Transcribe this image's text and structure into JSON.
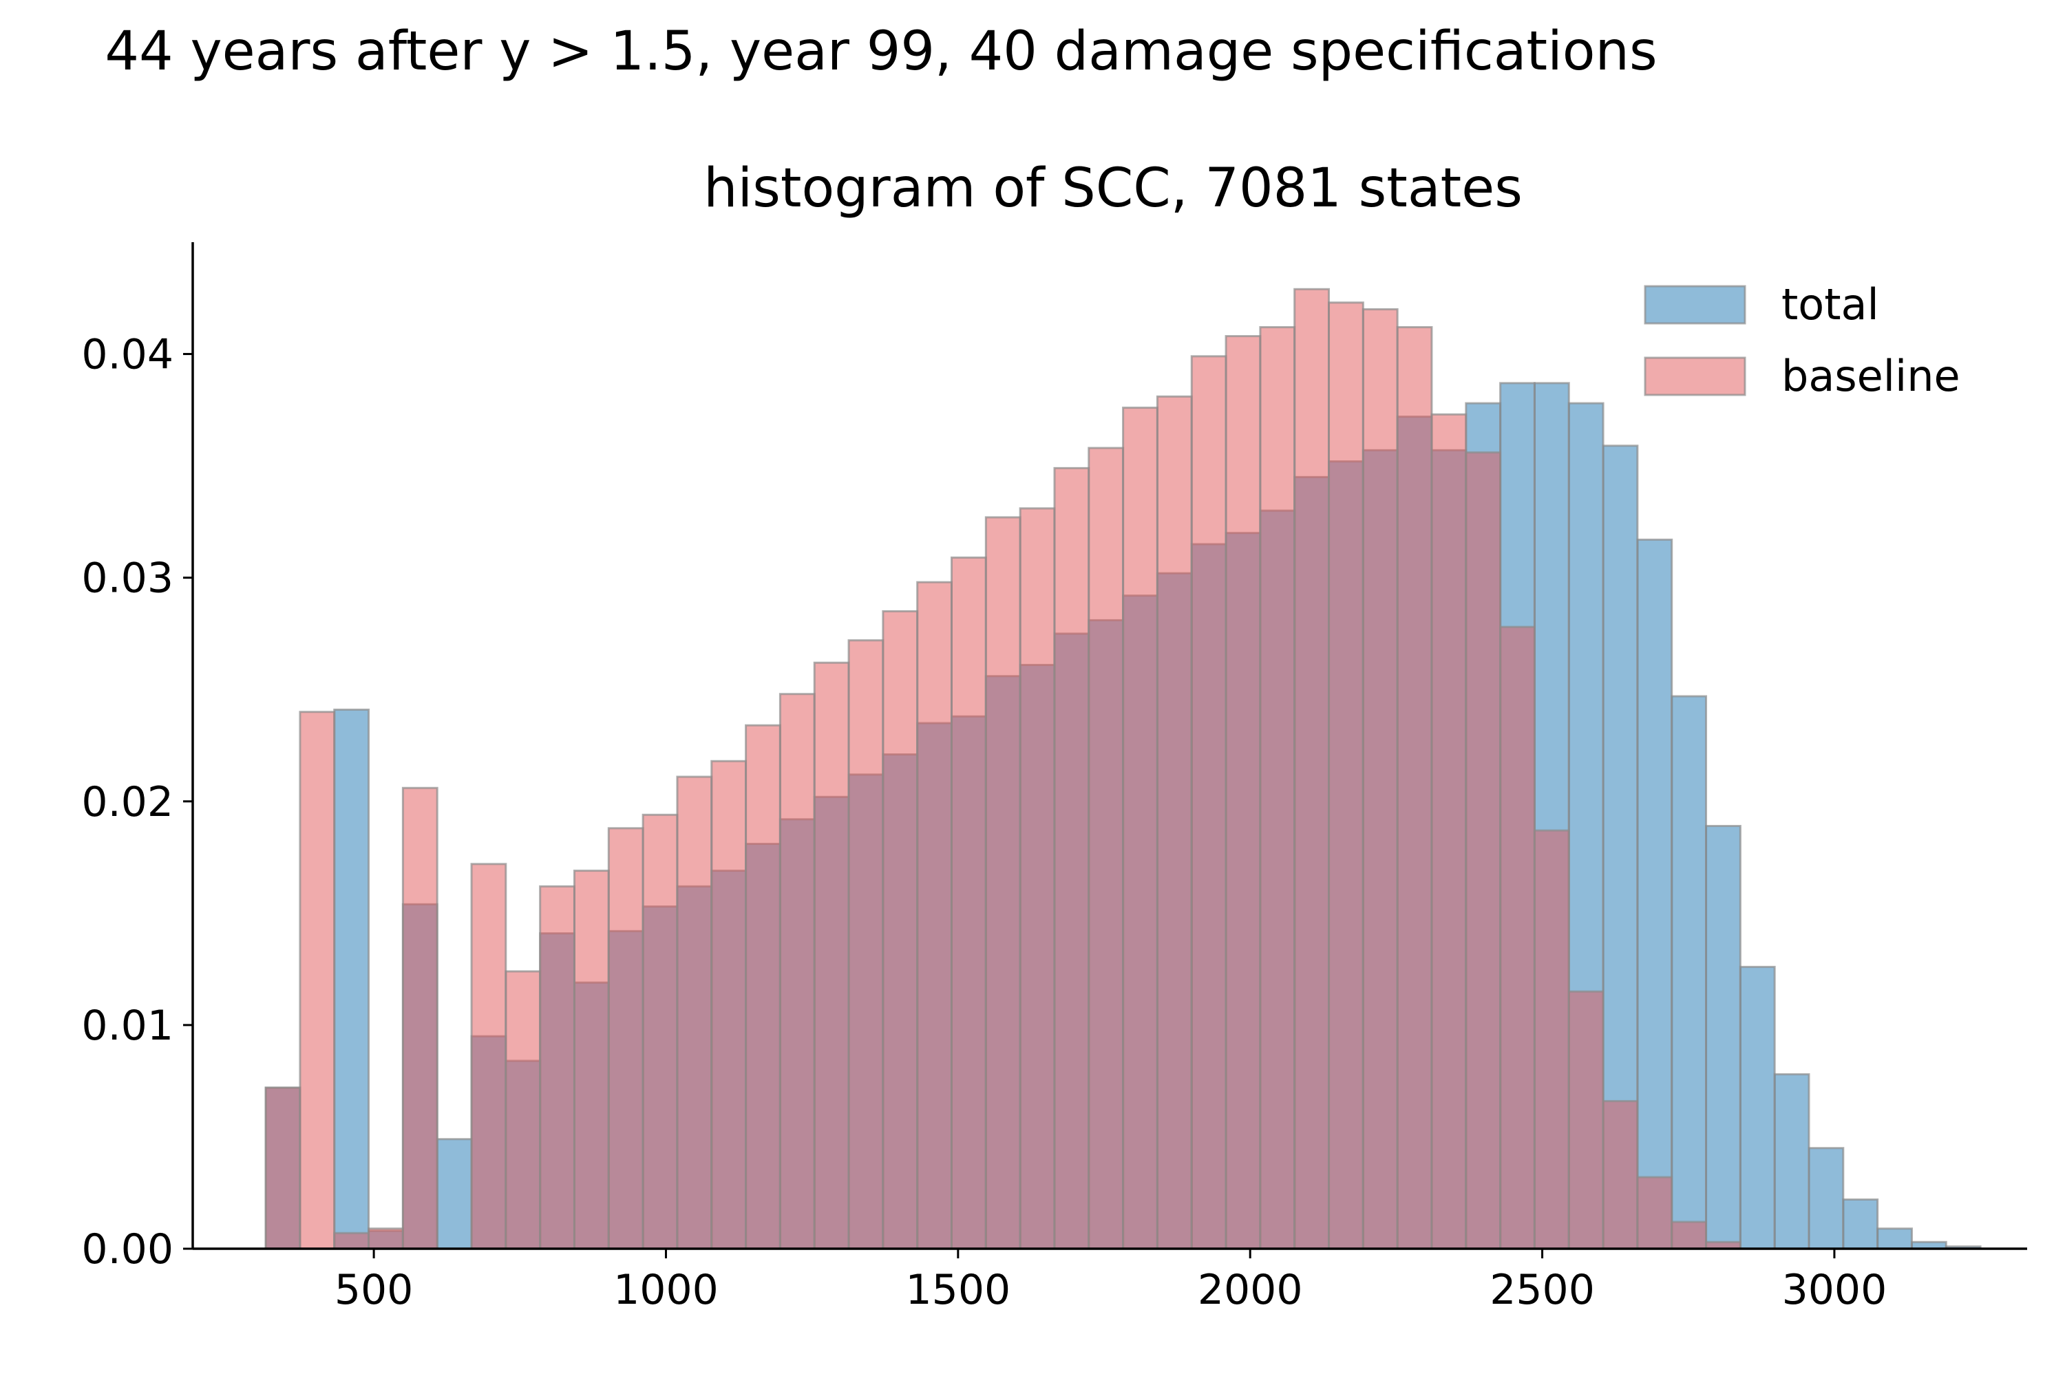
{
  "suptitle": "44 years after y > 1.5, year 99, 40 damage specifications",
  "chart_data": {
    "type": "bar",
    "subtype": "histogram",
    "title": "histogram of SCC, 7081 states",
    "xlabel": "",
    "ylabel": "",
    "xlim": [
      190,
      3330
    ],
    "ylim": [
      0,
      0.045
    ],
    "xticks": [
      500,
      1000,
      1500,
      2000,
      2500,
      3000
    ],
    "yticks": [
      0.0,
      0.01,
      0.02,
      0.03,
      0.04
    ],
    "ytick_labels": [
      "0.00",
      "0.01",
      "0.02",
      "0.03",
      "0.04"
    ],
    "grid": false,
    "legend_position": "top-right",
    "bin_width": 58.7,
    "series": [
      {
        "name": "total",
        "color": "#1f77b4",
        "bin_edges": [
          315.0,
          373.7,
          432.4,
          491.1,
          549.8,
          608.5,
          667.2,
          725.9,
          784.6,
          843.3,
          902.0,
          960.7,
          1019.4,
          1078.1,
          1136.8,
          1195.5,
          1254.2,
          1312.9,
          1371.6,
          1430.3,
          1489.0,
          1547.7,
          1606.4,
          1665.1,
          1723.8,
          1782.5,
          1841.2,
          1899.9,
          1958.6,
          2017.3,
          2076.0,
          2134.7,
          2193.4,
          2252.1,
          2310.8,
          2369.5,
          2428.2,
          2486.9,
          2545.6,
          2604.3,
          2663.0,
          2721.7,
          2780.4,
          2839.1,
          2897.8,
          2956.5,
          3015.2,
          3073.9,
          3132.6,
          3191.3
        ],
        "values": [
          0.0072,
          0.0,
          0.0241,
          0.0008,
          0.0154,
          0.0049,
          0.0095,
          0.0084,
          0.0141,
          0.0119,
          0.0142,
          0.0153,
          0.0162,
          0.0169,
          0.0181,
          0.0192,
          0.0202,
          0.0212,
          0.0221,
          0.0235,
          0.0238,
          0.0256,
          0.0261,
          0.0275,
          0.0281,
          0.0292,
          0.0302,
          0.0315,
          0.032,
          0.033,
          0.0345,
          0.0352,
          0.0357,
          0.0372,
          0.0357,
          0.0378,
          0.0387,
          0.0387,
          0.0378,
          0.0359,
          0.0317,
          0.0247,
          0.0189,
          0.0126,
          0.0078,
          0.0045,
          0.0022,
          0.0009,
          0.0003,
          0.0001
        ]
      },
      {
        "name": "baseline",
        "color": "#e15759",
        "bin_edges": [
          315.0,
          373.7,
          432.4,
          491.1,
          549.8,
          608.5,
          667.2,
          725.9,
          784.6,
          843.3,
          902.0,
          960.7,
          1019.4,
          1078.1,
          1136.8,
          1195.5,
          1254.2,
          1312.9,
          1371.6,
          1430.3,
          1489.0,
          1547.7,
          1606.4,
          1665.1,
          1723.8,
          1782.5,
          1841.2,
          1899.9,
          1958.6,
          2017.3,
          2076.0,
          2134.7,
          2193.4,
          2252.1,
          2310.8,
          2369.5,
          2428.2,
          2486.9,
          2545.6,
          2604.3,
          2663.0,
          2721.7,
          2780.4,
          2839.1,
          2897.8,
          2956.5,
          3015.2,
          3073.9,
          3132.6,
          3191.3
        ],
        "values": [
          0.0072,
          0.024,
          0.0007,
          0.0009,
          0.0206,
          0.0,
          0.0172,
          0.0124,
          0.0162,
          0.0169,
          0.0188,
          0.0194,
          0.0211,
          0.0218,
          0.0234,
          0.0248,
          0.0262,
          0.0272,
          0.0285,
          0.0298,
          0.0309,
          0.0327,
          0.0331,
          0.0349,
          0.0358,
          0.0376,
          0.0381,
          0.0399,
          0.0408,
          0.0412,
          0.0429,
          0.0423,
          0.042,
          0.0412,
          0.0373,
          0.0356,
          0.0278,
          0.0187,
          0.0115,
          0.0066,
          0.0032,
          0.0012,
          0.0003,
          0.0,
          0.0,
          0.0,
          0.0,
          0.0,
          0.0,
          0.0
        ]
      }
    ]
  }
}
